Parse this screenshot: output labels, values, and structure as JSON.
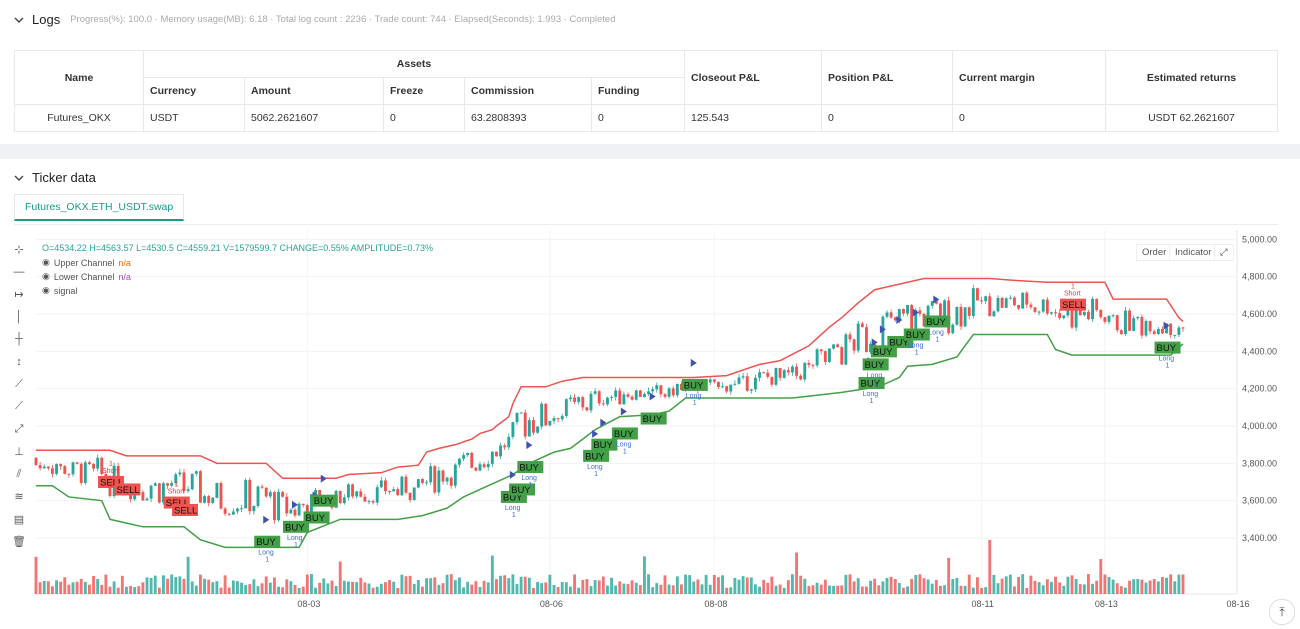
{
  "logs": {
    "title": "Logs",
    "status": "Progress(%): 100.0 · Memory usage(MB): 6.18 · Total log count : 2236 · Trade count: 744 · Elapsed(Seconds): 1.993 · Completed",
    "headers": {
      "name": "Name",
      "assets": "Assets",
      "currency": "Currency",
      "amount": "Amount",
      "freeze": "Freeze",
      "commission": "Commission",
      "funding": "Funding",
      "closeout": "Closeout P&L",
      "position": "Position P&L",
      "margin": "Current margin",
      "returns": "Estimated returns"
    },
    "row": {
      "name": "Futures_OKX",
      "currency": "USDT",
      "amount": "5062.2621607",
      "freeze": "0",
      "commission": "63.2808393",
      "funding": "0",
      "closeout": "125.543",
      "position": "0",
      "margin": "0",
      "returns": "USDT 62.2621607"
    }
  },
  "ticker": {
    "title": "Ticker data",
    "tab": "Futures_OKX.ETH_USDT.swap",
    "ohlc": "O=4534.22 H=4563.57 L=4530.5 C=4559.21 V=1579599.7 CHANGE=0.55% AMPLITUDE=0.73%",
    "legend": [
      {
        "label": "Upper Channel",
        "value": "n/a"
      },
      {
        "label": "Lower Channel",
        "value": "n/a"
      },
      {
        "label": "signal",
        "value": ""
      }
    ],
    "buttons": {
      "order": "Order",
      "indicator": "Indicator"
    },
    "tools": [
      "crosshair-icon",
      "horizontal-line-icon",
      "horizontal-ray-icon",
      "vertical-line-icon",
      "cross-line-icon",
      "vertical-range-icon",
      "trend-line-icon",
      "ray-icon",
      "extended-line-icon",
      "price-range-icon",
      "parallel-channel-icon",
      "fib-icon",
      "text-tool-icon",
      "delete-icon"
    ]
  },
  "chart_data": {
    "type": "line",
    "y_ticks": [
      "5,000.00",
      "4,800.00",
      "4,600.00",
      "4,400.00",
      "4,200.00",
      "4,000.00",
      "3,800.00",
      "3,600.00",
      "3,400.00"
    ],
    "x_ticks": [
      "08-03",
      "08-06",
      "08-08",
      "08-11",
      "08-13",
      "08-16"
    ],
    "ylim": [
      3250,
      5050
    ],
    "colors": {
      "up": "#26a69a",
      "down": "#ef5350",
      "upper": "#ef5350",
      "lower": "#43a047",
      "buy": "#43a047",
      "sell": "#ef5350"
    },
    "series": [
      {
        "name": "Upper Channel",
        "points": [
          [
            0,
            3870
          ],
          [
            18,
            3870
          ],
          [
            22,
            3840
          ],
          [
            40,
            3840
          ],
          [
            44,
            3800
          ],
          [
            56,
            3800
          ],
          [
            60,
            3720
          ],
          [
            73,
            3720
          ],
          [
            76,
            3740
          ],
          [
            84,
            3750
          ],
          [
            88,
            3780
          ],
          [
            93,
            3790
          ],
          [
            95,
            3860
          ],
          [
            98,
            3880
          ],
          [
            102,
            3900
          ],
          [
            106,
            3930
          ],
          [
            108,
            3960
          ],
          [
            111,
            3980
          ],
          [
            112,
            4000
          ],
          [
            115,
            4050
          ],
          [
            116,
            4120
          ],
          [
            118,
            4210
          ],
          [
            124,
            4210
          ],
          [
            128,
            4240
          ],
          [
            133,
            4260
          ],
          [
            160,
            4260
          ],
          [
            168,
            4270
          ],
          [
            176,
            4330
          ],
          [
            181,
            4350
          ],
          [
            188,
            4430
          ],
          [
            191,
            4490
          ],
          [
            193,
            4530
          ],
          [
            196,
            4580
          ],
          [
            200,
            4660
          ],
          [
            204,
            4730
          ],
          [
            208,
            4750
          ],
          [
            210,
            4760
          ],
          [
            214,
            4780
          ],
          [
            216,
            4790
          ],
          [
            232,
            4790
          ],
          [
            238,
            4780
          ],
          [
            246,
            4770
          ],
          [
            260,
            4770
          ],
          [
            262,
            4680
          ],
          [
            275,
            4680
          ],
          [
            278,
            4580
          ],
          [
            279,
            4560
          ]
        ]
      },
      {
        "name": "Lower Channel",
        "points": [
          [
            0,
            3680
          ],
          [
            4,
            3680
          ],
          [
            8,
            3620
          ],
          [
            16,
            3600
          ],
          [
            18,
            3500
          ],
          [
            26,
            3460
          ],
          [
            36,
            3460
          ],
          [
            40,
            3390
          ],
          [
            46,
            3350
          ],
          [
            64,
            3350
          ],
          [
            66,
            3430
          ],
          [
            74,
            3500
          ],
          [
            88,
            3500
          ],
          [
            94,
            3520
          ],
          [
            100,
            3560
          ],
          [
            104,
            3620
          ],
          [
            110,
            3680
          ],
          [
            116,
            3740
          ],
          [
            120,
            3800
          ],
          [
            126,
            3860
          ],
          [
            130,
            3880
          ],
          [
            136,
            3980
          ],
          [
            142,
            4050
          ],
          [
            150,
            4060
          ],
          [
            154,
            4080
          ],
          [
            158,
            4150
          ],
          [
            170,
            4150
          ],
          [
            184,
            4150
          ],
          [
            192,
            4170
          ],
          [
            196,
            4180
          ],
          [
            202,
            4200
          ],
          [
            206,
            4220
          ],
          [
            210,
            4260
          ],
          [
            212,
            4320
          ],
          [
            218,
            4330
          ],
          [
            224,
            4370
          ],
          [
            226,
            4430
          ],
          [
            228,
            4490
          ],
          [
            236,
            4490
          ],
          [
            240,
            4490
          ],
          [
            246,
            4490
          ],
          [
            248,
            4410
          ],
          [
            252,
            4380
          ],
          [
            268,
            4380
          ],
          [
            276,
            4380
          ],
          [
            279,
            4440
          ]
        ]
      }
    ],
    "signals": [
      {
        "type": "SELL",
        "x": 18,
        "y": 3700,
        "note": "Short",
        "count": "1"
      },
      {
        "type": "SELL",
        "x": 22,
        "y": 3660,
        "note": "",
        "count": ""
      },
      {
        "type": "SELL",
        "x": 34,
        "y": 3590,
        "note": "Short",
        "count": "1"
      },
      {
        "type": "SELL",
        "x": 36,
        "y": 3550,
        "note": "",
        "count": ""
      },
      {
        "type": "BUY",
        "x": 56,
        "y": 3380,
        "note": "Long",
        "count": "1"
      },
      {
        "type": "BUY",
        "x": 63,
        "y": 3460,
        "note": "Long",
        "count": "1"
      },
      {
        "type": "BUY",
        "x": 68,
        "y": 3510,
        "note": "",
        "count": ""
      },
      {
        "type": "BUY",
        "x": 70,
        "y": 3600,
        "note": "",
        "count": ""
      },
      {
        "type": "BUY",
        "x": 116,
        "y": 3620,
        "note": "Long",
        "count": "1"
      },
      {
        "type": "BUY",
        "x": 118,
        "y": 3660,
        "note": "",
        "count": ""
      },
      {
        "type": "BUY",
        "x": 120,
        "y": 3780,
        "note": "Long",
        "count": "1"
      },
      {
        "type": "BUY",
        "x": 136,
        "y": 3840,
        "note": "Long",
        "count": "1"
      },
      {
        "type": "BUY",
        "x": 138,
        "y": 3900,
        "note": "",
        "count": ""
      },
      {
        "type": "BUY",
        "x": 143,
        "y": 3960,
        "note": "Long",
        "count": "1"
      },
      {
        "type": "BUY",
        "x": 150,
        "y": 4040,
        "note": "",
        "count": ""
      },
      {
        "type": "BUY",
        "x": 160,
        "y": 4220,
        "note": "Long",
        "count": "1"
      },
      {
        "type": "BUY",
        "x": 203,
        "y": 4230,
        "note": "Long",
        "count": "1"
      },
      {
        "type": "BUY",
        "x": 204,
        "y": 4330,
        "note": "Long",
        "count": "1"
      },
      {
        "type": "BUY",
        "x": 206,
        "y": 4400,
        "note": "",
        "count": ""
      },
      {
        "type": "BUY",
        "x": 210,
        "y": 4450,
        "note": "",
        "count": ""
      },
      {
        "type": "BUY",
        "x": 214,
        "y": 4490,
        "note": "Long",
        "count": "1"
      },
      {
        "type": "BUY",
        "x": 219,
        "y": 4560,
        "note": "Long",
        "count": "1"
      },
      {
        "type": "SELL",
        "x": 252,
        "y": 4650,
        "note": "Short",
        "count": "1"
      },
      {
        "type": "BUY",
        "x": 275,
        "y": 4420,
        "note": "Long",
        "count": "1"
      }
    ],
    "bars": 280
  }
}
